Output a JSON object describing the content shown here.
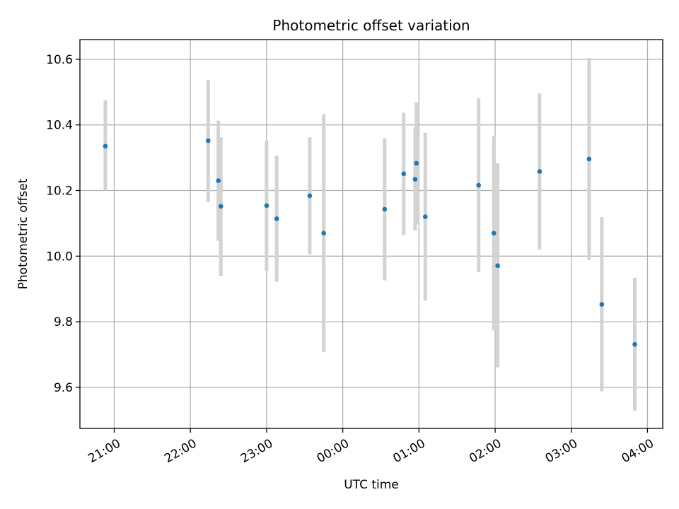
{
  "chart_data": {
    "type": "scatter",
    "title": "Photometric offset variation",
    "xlabel": "UTC time",
    "ylabel": "Photometric offset",
    "x_unit": "UTC time",
    "x_tick_labels": [
      "21:00",
      "22:00",
      "23:00",
      "00:00",
      "01:00",
      "02:00",
      "03:00",
      "04:00"
    ],
    "x_ticks": [
      "21:00",
      "22:00",
      "23:00",
      "00:00",
      "01:00",
      "02:00",
      "03:00",
      "04:00"
    ],
    "y_ticks": [
      9.6,
      9.8,
      10.0,
      10.2,
      10.4,
      10.6
    ],
    "y_tick_labels": [
      "9.6",
      "9.8",
      "10.0",
      "10.2",
      "10.4",
      "10.6"
    ],
    "xlim": [
      "20:33",
      "04:12"
    ],
    "ylim": [
      9.475,
      10.66
    ],
    "grid": true,
    "marker_color": "#1f77b4",
    "errorbar_color": "#d3d3d3",
    "points": [
      {
        "time": "20:53",
        "y": 10.335,
        "low": 10.2,
        "high": 10.475
      },
      {
        "time": "22:14",
        "y": 10.352,
        "low": 10.165,
        "high": 10.537
      },
      {
        "time": "22:22",
        "y": 10.23,
        "low": 10.047,
        "high": 10.413
      },
      {
        "time": "22:24",
        "y": 10.152,
        "low": 9.94,
        "high": 10.362
      },
      {
        "time": "23:00",
        "y": 10.154,
        "low": 9.956,
        "high": 10.352
      },
      {
        "time": "23:08",
        "y": 10.114,
        "low": 9.922,
        "high": 10.306
      },
      {
        "time": "23:34",
        "y": 10.184,
        "low": 10.005,
        "high": 10.362
      },
      {
        "time": "23:45",
        "y": 10.07,
        "low": 9.708,
        "high": 10.433
      },
      {
        "time": "00:33",
        "y": 10.143,
        "low": 9.926,
        "high": 10.359
      },
      {
        "time": "00:48",
        "y": 10.251,
        "low": 10.064,
        "high": 10.437
      },
      {
        "time": "00:57",
        "y": 10.234,
        "low": 10.078,
        "high": 10.392
      },
      {
        "time": "00:58",
        "y": 10.283,
        "low": 10.097,
        "high": 10.469
      },
      {
        "time": "01:05",
        "y": 10.12,
        "low": 9.864,
        "high": 10.376
      },
      {
        "time": "01:47",
        "y": 10.216,
        "low": 9.951,
        "high": 10.481
      },
      {
        "time": "01:59",
        "y": 10.07,
        "low": 9.774,
        "high": 10.366
      },
      {
        "time": "02:02",
        "y": 9.971,
        "low": 9.661,
        "high": 10.283
      },
      {
        "time": "02:35",
        "y": 10.258,
        "low": 10.021,
        "high": 10.496
      },
      {
        "time": "03:14",
        "y": 10.296,
        "low": 9.988,
        "high": 10.604
      },
      {
        "time": "03:24",
        "y": 9.853,
        "low": 9.588,
        "high": 10.119
      },
      {
        "time": "03:50",
        "y": 9.731,
        "low": 9.529,
        "high": 9.934
      }
    ]
  }
}
